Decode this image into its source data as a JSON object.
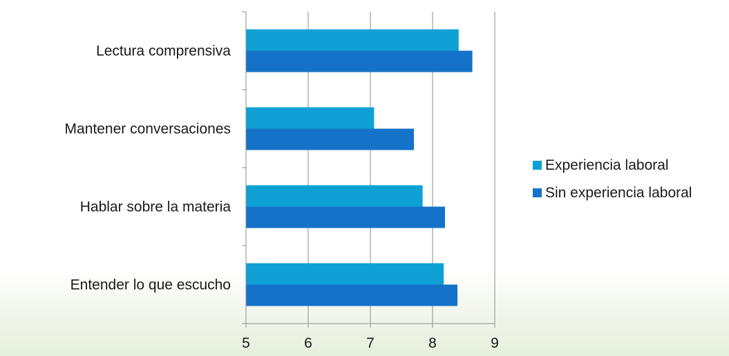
{
  "chart_data": {
    "type": "bar",
    "orientation": "horizontal",
    "categories": [
      "Lectura comprensiva",
      "Mantener conversaciones",
      "Hablar sobre la materia",
      "Entender lo que escucho"
    ],
    "series": [
      {
        "name": "Experiencia laboral",
        "color": "#0fa0d6",
        "values": [
          8.42,
          7.06,
          7.84,
          8.18
        ]
      },
      {
        "name": "Sin experiencia laboral",
        "color": "#1472c9",
        "values": [
          8.64,
          7.7,
          8.2,
          8.4
        ]
      }
    ],
    "xlim": [
      5,
      9
    ],
    "xticks": [
      "5",
      "6",
      "7",
      "8",
      "9"
    ],
    "grid": "vertical",
    "legend": "right",
    "title": "",
    "xlabel": "",
    "ylabel": ""
  }
}
